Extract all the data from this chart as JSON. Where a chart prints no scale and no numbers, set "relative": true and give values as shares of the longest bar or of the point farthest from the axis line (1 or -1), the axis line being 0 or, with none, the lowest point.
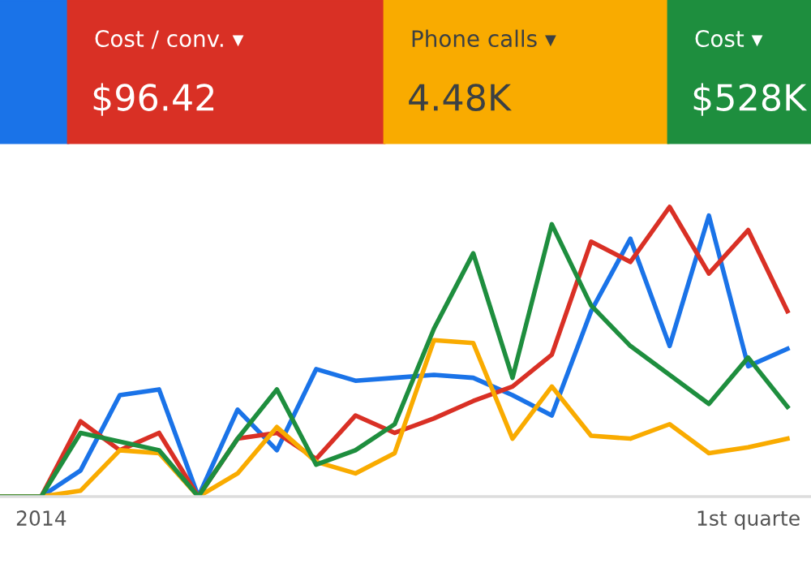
{
  "chart_data": {
    "type": "line",
    "relative": true,
    "marker": "none",
    "line_style": "solid",
    "categories": [
      null,
      "2014",
      null,
      null,
      null,
      null,
      null,
      null,
      null,
      null,
      null,
      null,
      null,
      null,
      null,
      null,
      null,
      null,
      null,
      "1st quarte",
      null
    ],
    "series": [
      {
        "color": "#1a73e8",
        "values": [
          0,
          0,
          0.09,
          0.35,
          0.37,
          0,
          0.3,
          0.16,
          0.44,
          0.4,
          0.41,
          0.42,
          0.41,
          0.35,
          0.28,
          0.64,
          0.89,
          0.52,
          0.97,
          0.45,
          0.51
        ]
      },
      {
        "color": "#d93025",
        "values": [
          0,
          0,
          0.26,
          0.16,
          0.22,
          0,
          0.2,
          0.22,
          0.13,
          0.28,
          0.22,
          0.27,
          0.33,
          0.38,
          0.49,
          0.88,
          0.81,
          1.0,
          0.77,
          0.92,
          0.64
        ]
      },
      {
        "color": "#f9ab00",
        "values": [
          0,
          0,
          0.02,
          0.16,
          0.15,
          0,
          0.08,
          0.24,
          0.12,
          0.08,
          0.15,
          0.54,
          0.53,
          0.2,
          0.38,
          0.21,
          0.2,
          0.25,
          0.15,
          0.17,
          0.2
        ]
      },
      {
        "color": "#1e8e3e",
        "values": [
          0,
          0,
          0.22,
          0.19,
          0.16,
          0,
          0.2,
          0.37,
          0.11,
          0.16,
          0.25,
          0.58,
          0.84,
          0.41,
          0.94,
          0.66,
          0.52,
          0.42,
          0.32,
          0.48,
          0.31
        ]
      }
    ],
    "annotations": [
      "Cost / conv. ▾",
      "$96.42",
      "Phone calls ▾",
      "4.48K",
      "Cost ▾",
      "$528K"
    ]
  }
}
